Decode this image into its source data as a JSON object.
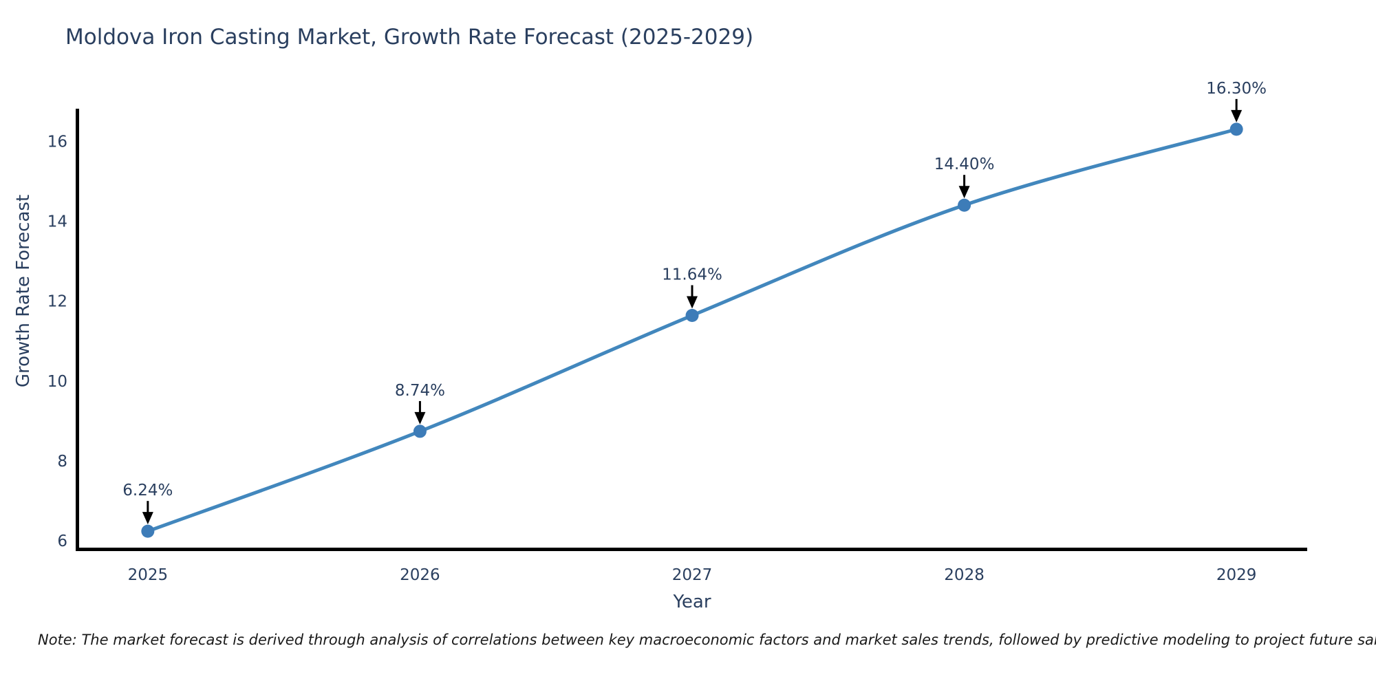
{
  "title": "Moldova Iron Casting Market, Growth Rate Forecast (2025-2029)",
  "note": "Note: The market forecast is derived through analysis of correlations between key macroeconomic factors and market sales trends, followed by predictive modeling to project future sales",
  "chart_data": {
    "type": "line",
    "title": "Moldova Iron Casting Market, Growth Rate Forecast (2025-2029)",
    "xlabel": "Year",
    "ylabel": "Growth Rate Forecast",
    "categories": [
      "2025",
      "2026",
      "2027",
      "2028",
      "2029"
    ],
    "x": [
      2025,
      2026,
      2027,
      2028,
      2029
    ],
    "values": [
      6.24,
      8.74,
      11.64,
      14.4,
      16.3
    ],
    "point_labels": [
      "6.24%",
      "8.74%",
      "11.64%",
      "14.40%",
      "16.30%"
    ],
    "yticks": [
      6,
      8,
      10,
      12,
      14,
      16
    ],
    "xlim": [
      2024.74,
      2029.26
    ],
    "ylim": [
      5.76,
      16.78
    ],
    "grid": false,
    "legend_position": "none",
    "line_color": "#4287bd",
    "marker_color": "#3d7cb8",
    "axis_line_color": "#000000",
    "tick_text_color": "#2a3f5f",
    "annotation_text_color": "#2a3f5f",
    "annotation_arrow_color": "#000000",
    "background_color": "#ffffff"
  }
}
